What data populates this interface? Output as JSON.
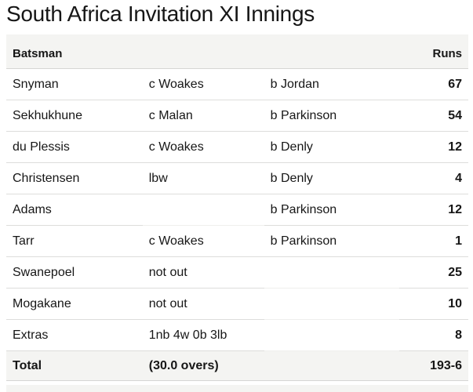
{
  "title": "South Africa Invitation XI Innings",
  "table": {
    "header": {
      "batsman": "Batsman",
      "runs": "Runs"
    },
    "rows": [
      {
        "batsman": "Snyman",
        "dismissal": "c Woakes",
        "bowler": "b Jordan",
        "runs": "67"
      },
      {
        "batsman": "Sekhukhune",
        "dismissal": "c Malan",
        "bowler": "b Parkinson",
        "runs": "54"
      },
      {
        "batsman": "du Plessis",
        "dismissal": "c Woakes",
        "bowler": "b Denly",
        "runs": "12"
      },
      {
        "batsman": "Christensen",
        "dismissal": "lbw",
        "bowler": "b Denly",
        "runs": "4"
      },
      {
        "batsman": "Adams",
        "dismissal": "",
        "bowler": "b Parkinson",
        "runs": "12"
      },
      {
        "batsman": "Tarr",
        "dismissal": "c Woakes",
        "bowler": "b Parkinson",
        "runs": "1"
      },
      {
        "batsman": "Swanepoel",
        "dismissal": "not out",
        "bowler": "",
        "runs": "25"
      },
      {
        "batsman": "Mogakane",
        "dismissal": "not out",
        "bowler": "",
        "runs": "10"
      },
      {
        "batsman": "Extras",
        "dismissal": "1nb 4w 0b 3lb",
        "bowler": "",
        "runs": "8"
      }
    ],
    "total": {
      "label": "Total",
      "overs": "(30.0 overs)",
      "runs": "193-6"
    }
  },
  "colors": {
    "header_bg": "#f4f4f2",
    "total_bg": "#f4f4f2",
    "row_border": "#dddddb",
    "row_border_empty": "#efefed",
    "section_border": "#d6d6d4",
    "text": "#161616",
    "page_bg": "#ffffff"
  }
}
